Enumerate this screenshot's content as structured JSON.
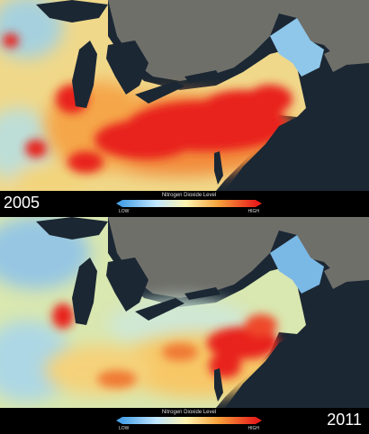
{
  "panels": [
    {
      "year": "2005",
      "year_side": "left",
      "legend": {
        "title": "Nitrogen Dioxide Level",
        "low": "LOW",
        "high": "HIGH"
      },
      "pollution_level": "high"
    },
    {
      "year": "2011",
      "year_side": "right",
      "legend": {
        "title": "Nitrogen Dioxide Level",
        "low": "LOW",
        "high": "HIGH"
      },
      "pollution_level": "low"
    }
  ],
  "colors": {
    "water": "#1b2733",
    "canada_land": "#6f6f6a",
    "low": "#4aa3e8",
    "mid": "#fff4b0",
    "high": "#e8201b"
  }
}
